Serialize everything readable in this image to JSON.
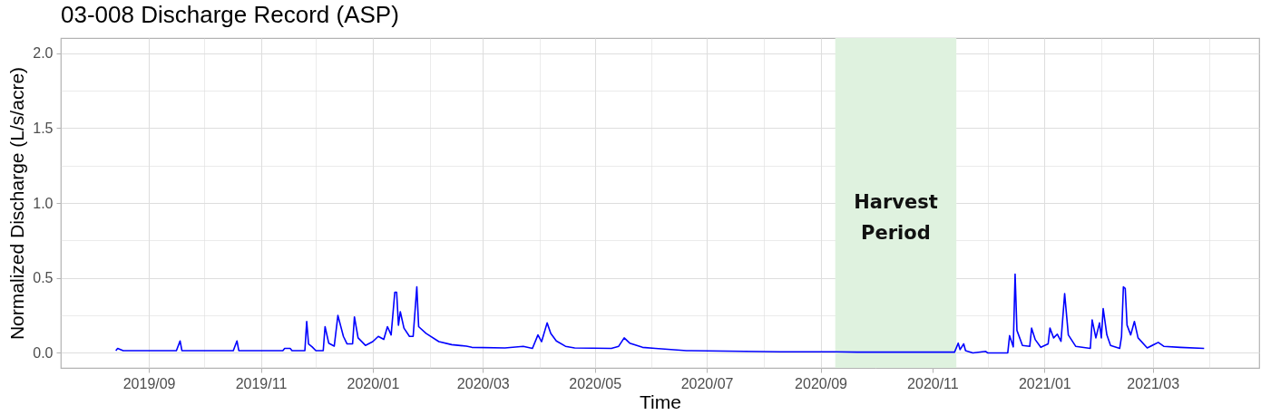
{
  "chart_data": {
    "type": "line",
    "title": "03-008 Discharge Record (ASP)",
    "xlabel": "Time",
    "ylabel": "Normalized Discharge (L/s/acre)",
    "grid": true,
    "x": [
      "2019-08-14",
      "2019-08-15",
      "2019-08-18",
      "2019-09-16",
      "2019-09-18",
      "2019-09-19",
      "2019-10-17",
      "2019-10-19",
      "2019-10-20",
      "2019-11-13",
      "2019-11-14",
      "2019-11-17",
      "2019-11-18",
      "2019-11-25",
      "2019-11-26",
      "2019-11-27",
      "2019-11-29",
      "2019-12-01",
      "2019-12-05",
      "2019-12-06",
      "2019-12-08",
      "2019-12-11",
      "2019-12-13",
      "2019-12-16",
      "2019-12-18",
      "2019-12-21",
      "2019-12-22",
      "2019-12-24",
      "2019-12-28",
      "2020-01-01",
      "2020-01-04",
      "2020-01-07",
      "2020-01-09",
      "2020-01-11",
      "2020-01-13",
      "2020-01-14",
      "2020-01-15",
      "2020-01-16",
      "2020-01-18",
      "2020-01-21",
      "2020-01-23",
      "2020-01-25",
      "2020-01-26",
      "2020-01-30",
      "2020-02-06",
      "2020-02-13",
      "2020-02-21",
      "2020-02-24",
      "2020-03-13",
      "2020-03-23",
      "2020-03-28",
      "2020-03-31",
      "2020-04-02",
      "2020-04-05",
      "2020-04-07",
      "2020-04-10",
      "2020-04-15",
      "2020-04-20",
      "2020-05-10",
      "2020-05-14",
      "2020-05-17",
      "2020-05-20",
      "2020-05-27",
      "2020-06-03",
      "2020-06-20",
      "2020-08-10",
      "2020-09-08",
      "2020-09-21",
      "2020-11-13",
      "2020-11-15",
      "2020-11-16",
      "2020-11-18",
      "2020-11-19",
      "2020-11-23",
      "2020-11-30",
      "2020-12-01",
      "2020-12-12",
      "2020-12-13",
      "2020-12-15",
      "2020-12-16",
      "2020-12-17",
      "2020-12-20",
      "2020-12-24",
      "2020-12-25",
      "2020-12-27",
      "2020-12-30",
      "2021-01-03",
      "2021-01-04",
      "2021-01-06",
      "2021-01-08",
      "2021-01-10",
      "2021-01-12",
      "2021-01-14",
      "2021-01-18",
      "2021-01-26",
      "2021-01-27",
      "2021-01-29",
      "2021-01-31",
      "2021-02-01",
      "2021-02-02",
      "2021-02-04",
      "2021-02-06",
      "2021-02-11",
      "2021-02-12",
      "2021-02-13",
      "2021-02-14",
      "2021-02-15",
      "2021-02-17",
      "2021-02-19",
      "2021-02-21",
      "2021-02-26",
      "2021-03-04",
      "2021-03-07",
      "2021-03-16",
      "2021-03-29"
    ],
    "series": [
      {
        "color": "#0000ff",
        "values": [
          0.015,
          0.03,
          0.015,
          0.015,
          0.08,
          0.015,
          0.015,
          0.08,
          0.015,
          0.015,
          0.03,
          0.03,
          0.015,
          0.015,
          0.21,
          0.06,
          0.04,
          0.015,
          0.015,
          0.175,
          0.065,
          0.045,
          0.25,
          0.11,
          0.06,
          0.06,
          0.24,
          0.1,
          0.05,
          0.075,
          0.11,
          0.09,
          0.175,
          0.12,
          0.405,
          0.405,
          0.185,
          0.275,
          0.165,
          0.11,
          0.11,
          0.44,
          0.175,
          0.13,
          0.075,
          0.055,
          0.045,
          0.037,
          0.033,
          0.044,
          0.03,
          0.12,
          0.075,
          0.2,
          0.13,
          0.08,
          0.044,
          0.033,
          0.03,
          0.044,
          0.1,
          0.065,
          0.037,
          0.03,
          0.015,
          0.007,
          0.007,
          0.005,
          0.005,
          0.065,
          0.022,
          0.06,
          0.015,
          0.0,
          0.01,
          0.0,
          0.0,
          0.115,
          0.04,
          0.525,
          0.15,
          0.05,
          0.044,
          0.165,
          0.088,
          0.037,
          0.06,
          0.165,
          0.1,
          0.125,
          0.077,
          0.395,
          0.12,
          0.044,
          0.03,
          0.22,
          0.1,
          0.2,
          0.1,
          0.295,
          0.12,
          0.05,
          0.03,
          0.11,
          0.44,
          0.43,
          0.185,
          0.12,
          0.21,
          0.1,
          0.033,
          0.07,
          0.044,
          0.037,
          0.03
        ]
      }
    ],
    "xlim": [
      "2019-07-15",
      "2021-04-28"
    ],
    "xticks": [
      {
        "value": "2019-09-01",
        "label": "2019/09"
      },
      {
        "value": "2019-10-01",
        "label": null
      },
      {
        "value": "2019-11-01",
        "label": "2019/11"
      },
      {
        "value": "2019-12-01",
        "label": null
      },
      {
        "value": "2020-01-01",
        "label": "2020/01"
      },
      {
        "value": "2020-02-01",
        "label": null
      },
      {
        "value": "2020-03-01",
        "label": "2020/03"
      },
      {
        "value": "2020-04-01",
        "label": null
      },
      {
        "value": "2020-05-01",
        "label": "2020/05"
      },
      {
        "value": "2020-06-01",
        "label": null
      },
      {
        "value": "2020-07-01",
        "label": "2020/07"
      },
      {
        "value": "2020-08-01",
        "label": null
      },
      {
        "value": "2020-09-01",
        "label": "2020/09"
      },
      {
        "value": "2020-10-01",
        "label": null
      },
      {
        "value": "2020-11-01",
        "label": "2020/11"
      },
      {
        "value": "2020-12-01",
        "label": null
      },
      {
        "value": "2021-01-01",
        "label": "2021/01"
      },
      {
        "value": "2021-02-01",
        "label": null
      },
      {
        "value": "2021-03-01",
        "label": "2021/03"
      },
      {
        "value": "2021-04-01",
        "label": null
      }
    ],
    "ylim": [
      -0.1,
      2.1
    ],
    "yticks": [
      {
        "value": 0,
        "label": "0.0"
      },
      {
        "value": 0.25,
        "label": null
      },
      {
        "value": 0.5,
        "label": "0.5"
      },
      {
        "value": 0.75,
        "label": null
      },
      {
        "value": 1,
        "label": "1.0"
      },
      {
        "value": 1.25,
        "label": null
      },
      {
        "value": 1.5,
        "label": "1.5"
      },
      {
        "value": 1.75,
        "label": null
      },
      {
        "value": 2,
        "label": "2.0"
      }
    ],
    "bands": [
      {
        "axis": "x",
        "from": "2020-09-09",
        "to": "2020-11-14",
        "label": "Harvest Period",
        "color": "#dff2df"
      }
    ]
  }
}
